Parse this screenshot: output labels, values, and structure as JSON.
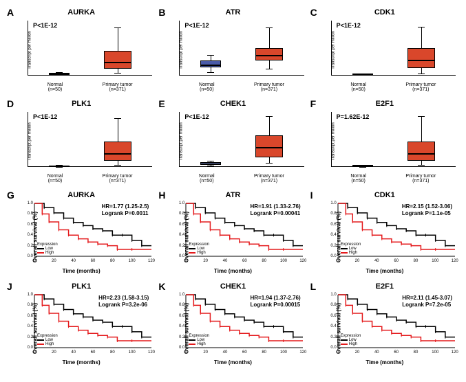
{
  "boxplots": [
    {
      "id": "A",
      "gene": "AURKA",
      "pvalue": "P<1E-12",
      "normal": {
        "q1": 1,
        "median": 1.5,
        "q3": 2,
        "wlow": 0.5,
        "whigh": 2.5,
        "color": "#6b7db8"
      },
      "tumor": {
        "q1": 5,
        "median": 10,
        "q3": 18,
        "wlow": 2,
        "whigh": 35,
        "color": "#d9472b"
      },
      "ymax": 40
    },
    {
      "id": "B",
      "gene": "ATR",
      "pvalue": "P<1E-12",
      "normal": {
        "q1": 1.2,
        "median": 1.6,
        "q3": 2.2,
        "wlow": 0.5,
        "whigh": 3,
        "color": "#4a5ba8"
      },
      "tumor": {
        "q1": 2.2,
        "median": 3,
        "q3": 4,
        "wlow": 1,
        "whigh": 7,
        "color": "#d9472b"
      },
      "ymax": 8
    },
    {
      "id": "C",
      "gene": "CDK1",
      "pvalue": "P<1E-12",
      "normal": {
        "q1": 0.5,
        "median": 0.8,
        "q3": 1,
        "wlow": 0.3,
        "whigh": 1.2,
        "color": "#6b7db8"
      },
      "tumor": {
        "q1": 4,
        "median": 8,
        "q3": 14,
        "wlow": 1,
        "whigh": 25,
        "color": "#d9472b"
      },
      "ymax": 28
    },
    {
      "id": "D",
      "gene": "PLK1",
      "pvalue": "P<1E-12",
      "normal": {
        "q1": 0.3,
        "median": 0.5,
        "q3": 0.8,
        "wlow": 0.1,
        "whigh": 1,
        "color": "#888"
      },
      "tumor": {
        "q1": 3,
        "median": 7,
        "q3": 13,
        "wlow": 1,
        "whigh": 25,
        "color": "#d9472b"
      },
      "ymax": 28
    },
    {
      "id": "E",
      "gene": "CHEK1",
      "pvalue": "P<1E-12",
      "normal": {
        "q1": 0.5,
        "median": 0.8,
        "q3": 1.2,
        "wlow": 0.3,
        "whigh": 1.5,
        "color": "#6b7db8"
      },
      "tumor": {
        "q1": 2.5,
        "median": 5,
        "q3": 8,
        "wlow": 1,
        "whigh": 13,
        "color": "#d9472b"
      },
      "ymax": 14
    },
    {
      "id": "F",
      "gene": "E2F1",
      "pvalue": "P=1.62E-12",
      "normal": {
        "q1": 0.3,
        "median": 0.6,
        "q3": 1,
        "wlow": 0.1,
        "whigh": 1.2,
        "color": "#888"
      },
      "tumor": {
        "q1": 3,
        "median": 7,
        "q3": 13,
        "wlow": 1,
        "whigh": 26,
        "color": "#d9472b"
      },
      "ymax": 28
    }
  ],
  "survival": [
    {
      "id": "G",
      "gene": "AURKA",
      "hr": "HR=1.77 (1.25-2.5)",
      "logrank": "Logrank P=0.0011"
    },
    {
      "id": "H",
      "gene": "ATR",
      "hr": "HR=1.91 (1.33-2.76)",
      "logrank": "Logrank P=0.00041"
    },
    {
      "id": "I",
      "gene": "CDK1",
      "hr": "HR=2.15 (1.52-3.06)",
      "logrank": "Logrank P=1.1e-05"
    },
    {
      "id": "J",
      "gene": "PLK1",
      "hr": "HR=2.23 (1.58-3.15)",
      "logrank": "Logrank P=3.2e-06"
    },
    {
      "id": "K",
      "gene": "CHEK1",
      "hr": "HR=1.94 (1.37-2.76)",
      "logrank": "Logrank P=0.00015"
    },
    {
      "id": "L",
      "gene": "E2F1",
      "hr": "HR=2.11 (1.45-3.07)",
      "logrank": "Logrank P=7.2e-05"
    }
  ],
  "labels": {
    "normal": "Normal",
    "normal_n": "(n=50)",
    "tumor": "Primary tumor",
    "tumor_n": "(n=371)",
    "ylabel_box": "Transcript per million",
    "ylabel_surv": "Overall survival (%)",
    "xlabel_surv": "Time (months)",
    "expression": "Expression",
    "low": "Low",
    "high": "High"
  },
  "colors": {
    "low": "#000000",
    "high": "#e41a1c",
    "bg": "#ffffff"
  },
  "surv_xticks": [
    0,
    20,
    40,
    60,
    80,
    100,
    120
  ],
  "surv_yticks": [
    "0.0",
    "0.2",
    "0.4",
    "0.6",
    "0.8",
    "1.0"
  ],
  "surv_curves": {
    "low": [
      [
        0,
        1.0
      ],
      [
        10,
        0.92
      ],
      [
        20,
        0.82
      ],
      [
        30,
        0.72
      ],
      [
        40,
        0.64
      ],
      [
        50,
        0.58
      ],
      [
        60,
        0.52
      ],
      [
        70,
        0.48
      ],
      [
        80,
        0.4
      ],
      [
        90,
        0.4
      ],
      [
        100,
        0.3
      ],
      [
        110,
        0.2
      ],
      [
        120,
        0.2
      ]
    ],
    "high": [
      [
        0,
        1.0
      ],
      [
        8,
        0.85
      ],
      [
        15,
        0.7
      ],
      [
        25,
        0.55
      ],
      [
        35,
        0.45
      ],
      [
        45,
        0.38
      ],
      [
        55,
        0.32
      ],
      [
        65,
        0.28
      ],
      [
        75,
        0.25
      ],
      [
        85,
        0.18
      ],
      [
        100,
        0.18
      ],
      [
        120,
        0.18
      ]
    ]
  }
}
